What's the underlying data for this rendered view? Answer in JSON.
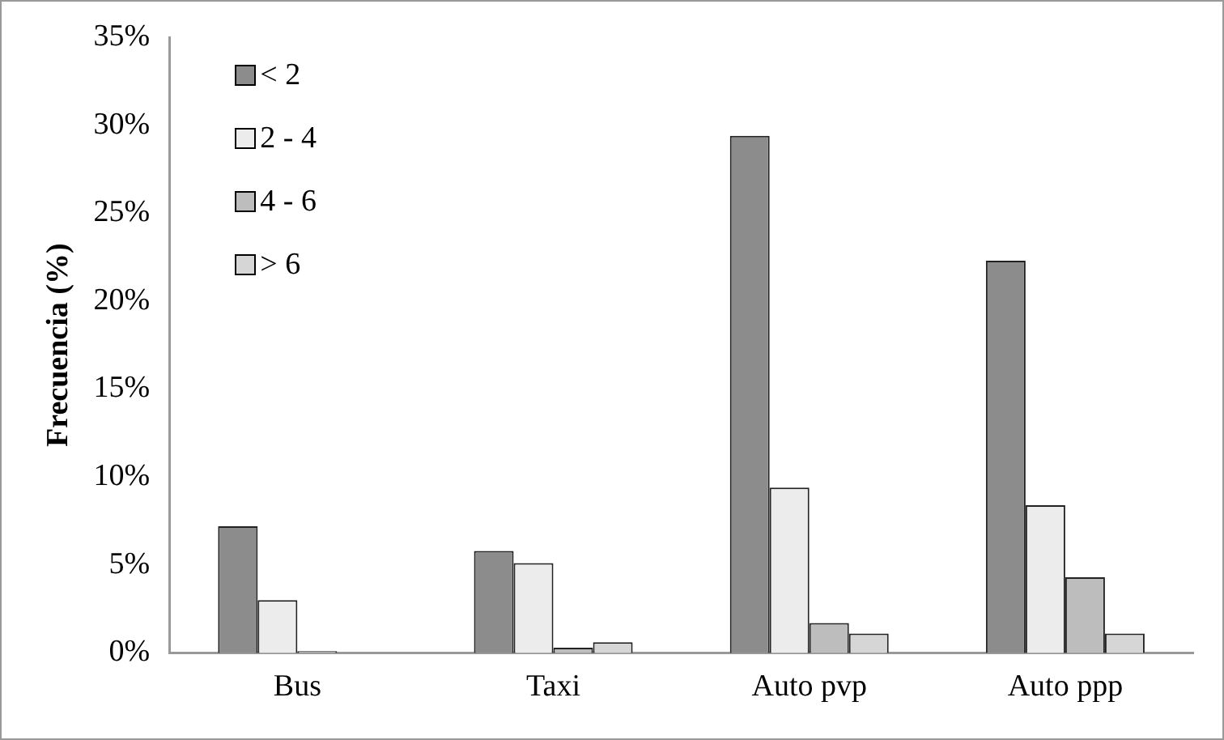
{
  "chart_data": {
    "type": "bar",
    "ylabel": "Frecuencia (%)",
    "categories": [
      "Bus",
      "Taxi",
      "Auto pvp",
      "Auto ppp"
    ],
    "series": [
      {
        "name": "< 2",
        "color": "#8c8c8c",
        "values": [
          7.2,
          5.8,
          29.4,
          22.3
        ]
      },
      {
        "name": "2 - 4",
        "color": "#ececec",
        "values": [
          3.0,
          5.1,
          9.4,
          8.4
        ]
      },
      {
        "name": "4 - 6",
        "color": "#bdbdbd",
        "values": [
          0.1,
          0.3,
          1.7,
          4.3
        ]
      },
      {
        "name": "> 6",
        "color": "#d6d6d6",
        "values": [
          0,
          0.6,
          1.1,
          1.1
        ]
      }
    ],
    "ylim": [
      0,
      35
    ],
    "yticks": [
      {
        "value": 0,
        "label": "0%"
      },
      {
        "value": 5,
        "label": "5%"
      },
      {
        "value": 10,
        "label": "10%"
      },
      {
        "value": 15,
        "label": "15%"
      },
      {
        "value": 20,
        "label": "20%"
      },
      {
        "value": 25,
        "label": "25%"
      },
      {
        "value": 30,
        "label": "30%"
      },
      {
        "value": 35,
        "label": "35%"
      }
    ],
    "grid": false,
    "legend": "top left"
  }
}
